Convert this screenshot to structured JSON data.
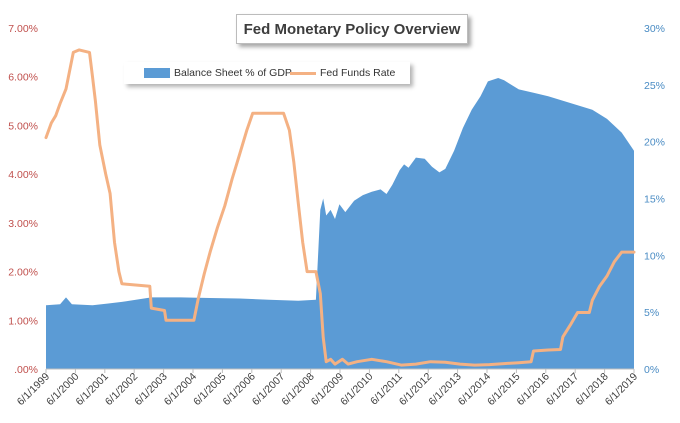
{
  "chart_data": {
    "type": "area",
    "title": "Fed Monetary Policy Overview",
    "xlabel": "",
    "ylabel": "",
    "legend_position": "top-left",
    "grid": false,
    "x_tick_labels": [
      "6/1/1999",
      "6/1/2000",
      "6/1/2001",
      "6/1/2002",
      "6/1/2003",
      "6/1/2004",
      "6/1/2005",
      "6/1/2006",
      "6/1/2007",
      "6/1/2008",
      "6/1/2009",
      "6/1/2010",
      "6/1/2011",
      "6/1/2012",
      "6/1/2013",
      "6/1/2014",
      "6/1/2015",
      "6/1/2016",
      "6/1/2017",
      "6/1/2018",
      "6/1/2019"
    ],
    "x_range": [
      1999.42,
      2019.42
    ],
    "y_left": {
      "range": [
        0,
        7
      ],
      "tick_values": [
        0,
        1,
        2,
        3,
        4,
        5,
        6,
        7
      ],
      "tick_labels": [
        ".00%",
        "1.00%",
        "2.00%",
        "3.00%",
        "4.00%",
        "5.00%",
        "6.00%",
        "7.00%"
      ],
      "color": "#c0504d"
    },
    "y_right": {
      "range": [
        0,
        30
      ],
      "tick_values": [
        0,
        5,
        10,
        15,
        20,
        25,
        30
      ],
      "tick_labels": [
        "0%",
        "5%",
        "10%",
        "15%",
        "20%",
        "25%",
        "30%"
      ],
      "color": "#4a8cc4"
    },
    "series": [
      {
        "name": "Balance Sheet % of GDP",
        "type": "area",
        "axis": "right",
        "color": "#5b9bd5",
        "points": [
          [
            1999.42,
            5.6
          ],
          [
            1999.9,
            5.7
          ],
          [
            2000.1,
            6.3
          ],
          [
            2000.3,
            5.7
          ],
          [
            2001.0,
            5.6
          ],
          [
            2001.5,
            5.75
          ],
          [
            2002.0,
            5.9
          ],
          [
            2003.0,
            6.3
          ],
          [
            2004.0,
            6.3
          ],
          [
            2005.0,
            6.25
          ],
          [
            2006.0,
            6.2
          ],
          [
            2007.0,
            6.1
          ],
          [
            2008.0,
            6.0
          ],
          [
            2008.6,
            6.1
          ],
          [
            2008.75,
            14.0
          ],
          [
            2008.85,
            15.0
          ],
          [
            2008.95,
            13.5
          ],
          [
            2009.1,
            14.0
          ],
          [
            2009.25,
            13.2
          ],
          [
            2009.4,
            14.5
          ],
          [
            2009.6,
            13.8
          ],
          [
            2009.9,
            14.8
          ],
          [
            2010.2,
            15.3
          ],
          [
            2010.5,
            15.6
          ],
          [
            2010.8,
            15.8
          ],
          [
            2011.0,
            15.4
          ],
          [
            2011.2,
            16.2
          ],
          [
            2011.45,
            17.5
          ],
          [
            2011.6,
            18.0
          ],
          [
            2011.75,
            17.7
          ],
          [
            2012.0,
            18.6
          ],
          [
            2012.3,
            18.5
          ],
          [
            2012.55,
            17.8
          ],
          [
            2012.8,
            17.3
          ],
          [
            2013.0,
            17.6
          ],
          [
            2013.3,
            19.2
          ],
          [
            2013.6,
            21.2
          ],
          [
            2013.9,
            22.8
          ],
          [
            2014.2,
            24.0
          ],
          [
            2014.45,
            25.3
          ],
          [
            2014.8,
            25.6
          ],
          [
            2015.0,
            25.4
          ],
          [
            2015.5,
            24.6
          ],
          [
            2016.0,
            24.3
          ],
          [
            2016.5,
            24.0
          ],
          [
            2017.0,
            23.6
          ],
          [
            2017.5,
            23.2
          ],
          [
            2018.0,
            22.8
          ],
          [
            2018.5,
            22.0
          ],
          [
            2019.0,
            20.8
          ],
          [
            2019.42,
            19.2
          ]
        ]
      },
      {
        "name": "Fed Funds Rate",
        "type": "line",
        "axis": "left",
        "color": "#f4b183",
        "points": [
          [
            1999.42,
            4.75
          ],
          [
            1999.6,
            5.05
          ],
          [
            1999.75,
            5.2
          ],
          [
            1999.9,
            5.45
          ],
          [
            2000.1,
            5.75
          ],
          [
            2000.35,
            6.5
          ],
          [
            2000.55,
            6.55
          ],
          [
            2000.9,
            6.5
          ],
          [
            2001.0,
            6.0
          ],
          [
            2001.1,
            5.5
          ],
          [
            2001.25,
            4.6
          ],
          [
            2001.45,
            4.0
          ],
          [
            2001.6,
            3.6
          ],
          [
            2001.75,
            2.6
          ],
          [
            2001.9,
            2.0
          ],
          [
            2002.0,
            1.75
          ],
          [
            2002.95,
            1.7
          ],
          [
            2003.0,
            1.25
          ],
          [
            2003.45,
            1.2
          ],
          [
            2003.5,
            1.0
          ],
          [
            2004.45,
            1.0
          ],
          [
            2004.6,
            1.45
          ],
          [
            2004.8,
            1.95
          ],
          [
            2005.0,
            2.4
          ],
          [
            2005.25,
            2.9
          ],
          [
            2005.5,
            3.35
          ],
          [
            2005.75,
            3.9
          ],
          [
            2006.0,
            4.4
          ],
          [
            2006.25,
            4.9
          ],
          [
            2006.45,
            5.25
          ],
          [
            2007.5,
            5.25
          ],
          [
            2007.7,
            4.9
          ],
          [
            2007.85,
            4.25
          ],
          [
            2008.0,
            3.4
          ],
          [
            2008.15,
            2.6
          ],
          [
            2008.3,
            2.0
          ],
          [
            2008.6,
            2.0
          ],
          [
            2008.75,
            1.55
          ],
          [
            2008.85,
            0.65
          ],
          [
            2008.95,
            0.15
          ],
          [
            2009.1,
            0.2
          ],
          [
            2009.25,
            0.1
          ],
          [
            2009.5,
            0.2
          ],
          [
            2009.7,
            0.1
          ],
          [
            2010.0,
            0.15
          ],
          [
            2010.5,
            0.2
          ],
          [
            2011.0,
            0.15
          ],
          [
            2011.5,
            0.08
          ],
          [
            2012.0,
            0.1
          ],
          [
            2012.5,
            0.15
          ],
          [
            2013.0,
            0.14
          ],
          [
            2013.5,
            0.1
          ],
          [
            2014.0,
            0.08
          ],
          [
            2014.5,
            0.09
          ],
          [
            2015.0,
            0.11
          ],
          [
            2015.5,
            0.13
          ],
          [
            2015.92,
            0.15
          ],
          [
            2016.0,
            0.37
          ],
          [
            2016.5,
            0.39
          ],
          [
            2016.92,
            0.4
          ],
          [
            2017.0,
            0.66
          ],
          [
            2017.25,
            0.9
          ],
          [
            2017.5,
            1.16
          ],
          [
            2017.9,
            1.16
          ],
          [
            2018.0,
            1.41
          ],
          [
            2018.25,
            1.7
          ],
          [
            2018.5,
            1.91
          ],
          [
            2018.75,
            2.2
          ],
          [
            2019.0,
            2.4
          ],
          [
            2019.42,
            2.4
          ]
        ]
      }
    ]
  }
}
